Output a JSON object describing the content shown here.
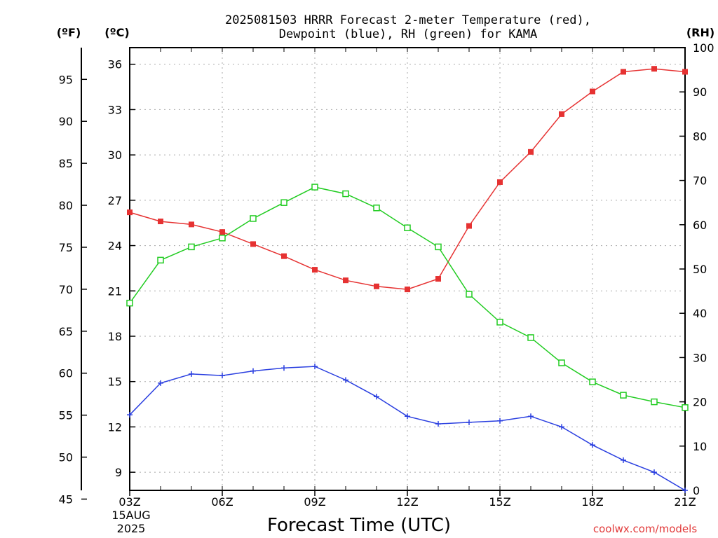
{
  "chart_data": {
    "type": "line",
    "title_line1": "2025081503 HRRR Forecast 2-meter Temperature (red),",
    "title_line2": "Dewpoint (blue), RH (green) for KAMA",
    "left_outer_unit": "(ºF)",
    "left_inner_unit": "(ºC)",
    "right_unit": "(RH)",
    "xlabel": "Forecast Time (UTC)",
    "credit": "coolwx.com/models",
    "date_line1": "15AUG",
    "date_line2": "2025",
    "x_hours": [
      3,
      4,
      5,
      6,
      7,
      8,
      9,
      10,
      11,
      12,
      13,
      14,
      15,
      16,
      17,
      18,
      19,
      20,
      21
    ],
    "x_tick_labels": [
      "03Z",
      "06Z",
      "09Z",
      "12Z",
      "15Z",
      "18Z",
      "21Z"
    ],
    "x_tick_hours": [
      3,
      6,
      9,
      12,
      15,
      18,
      21
    ],
    "celsius_ticks": [
      9,
      12,
      15,
      18,
      21,
      24,
      27,
      30,
      33,
      36
    ],
    "fahrenheit_ticks": [
      45,
      50,
      55,
      60,
      65,
      70,
      75,
      80,
      85,
      90,
      95
    ],
    "rh_ticks": [
      0,
      10,
      20,
      30,
      40,
      50,
      60,
      70,
      80,
      90,
      100
    ],
    "celsius_range": [
      7.8,
      37.1
    ],
    "rh_range": [
      0,
      100
    ],
    "grid": true,
    "series": [
      {
        "name": "Temperature",
        "axis": "celsius",
        "color": "#e63232",
        "marker": "filled-square",
        "values": [
          26.2,
          25.6,
          25.4,
          24.9,
          24.1,
          23.3,
          22.4,
          21.7,
          21.3,
          21.1,
          21.8,
          25.3,
          28.2,
          30.2,
          32.7,
          34.2,
          35.5,
          35.7,
          35.5
        ]
      },
      {
        "name": "Dewpoint",
        "axis": "celsius",
        "color": "#2a3fe0",
        "marker": "plus",
        "values": [
          12.8,
          14.9,
          15.5,
          15.4,
          15.7,
          15.9,
          16.0,
          15.1,
          14.0,
          12.7,
          12.2,
          12.3,
          12.4,
          12.7,
          12.0,
          10.8,
          9.8,
          9.0,
          7.8
        ]
      },
      {
        "name": "RH",
        "axis": "rh",
        "color": "#22cc22",
        "marker": "open-square",
        "values": [
          42.3,
          52,
          55,
          57,
          61.4,
          65,
          68.5,
          67,
          63.8,
          59.3,
          55,
          44.3,
          38,
          34.5,
          28.8,
          24.5,
          21.5,
          20,
          18.7
        ]
      }
    ]
  }
}
